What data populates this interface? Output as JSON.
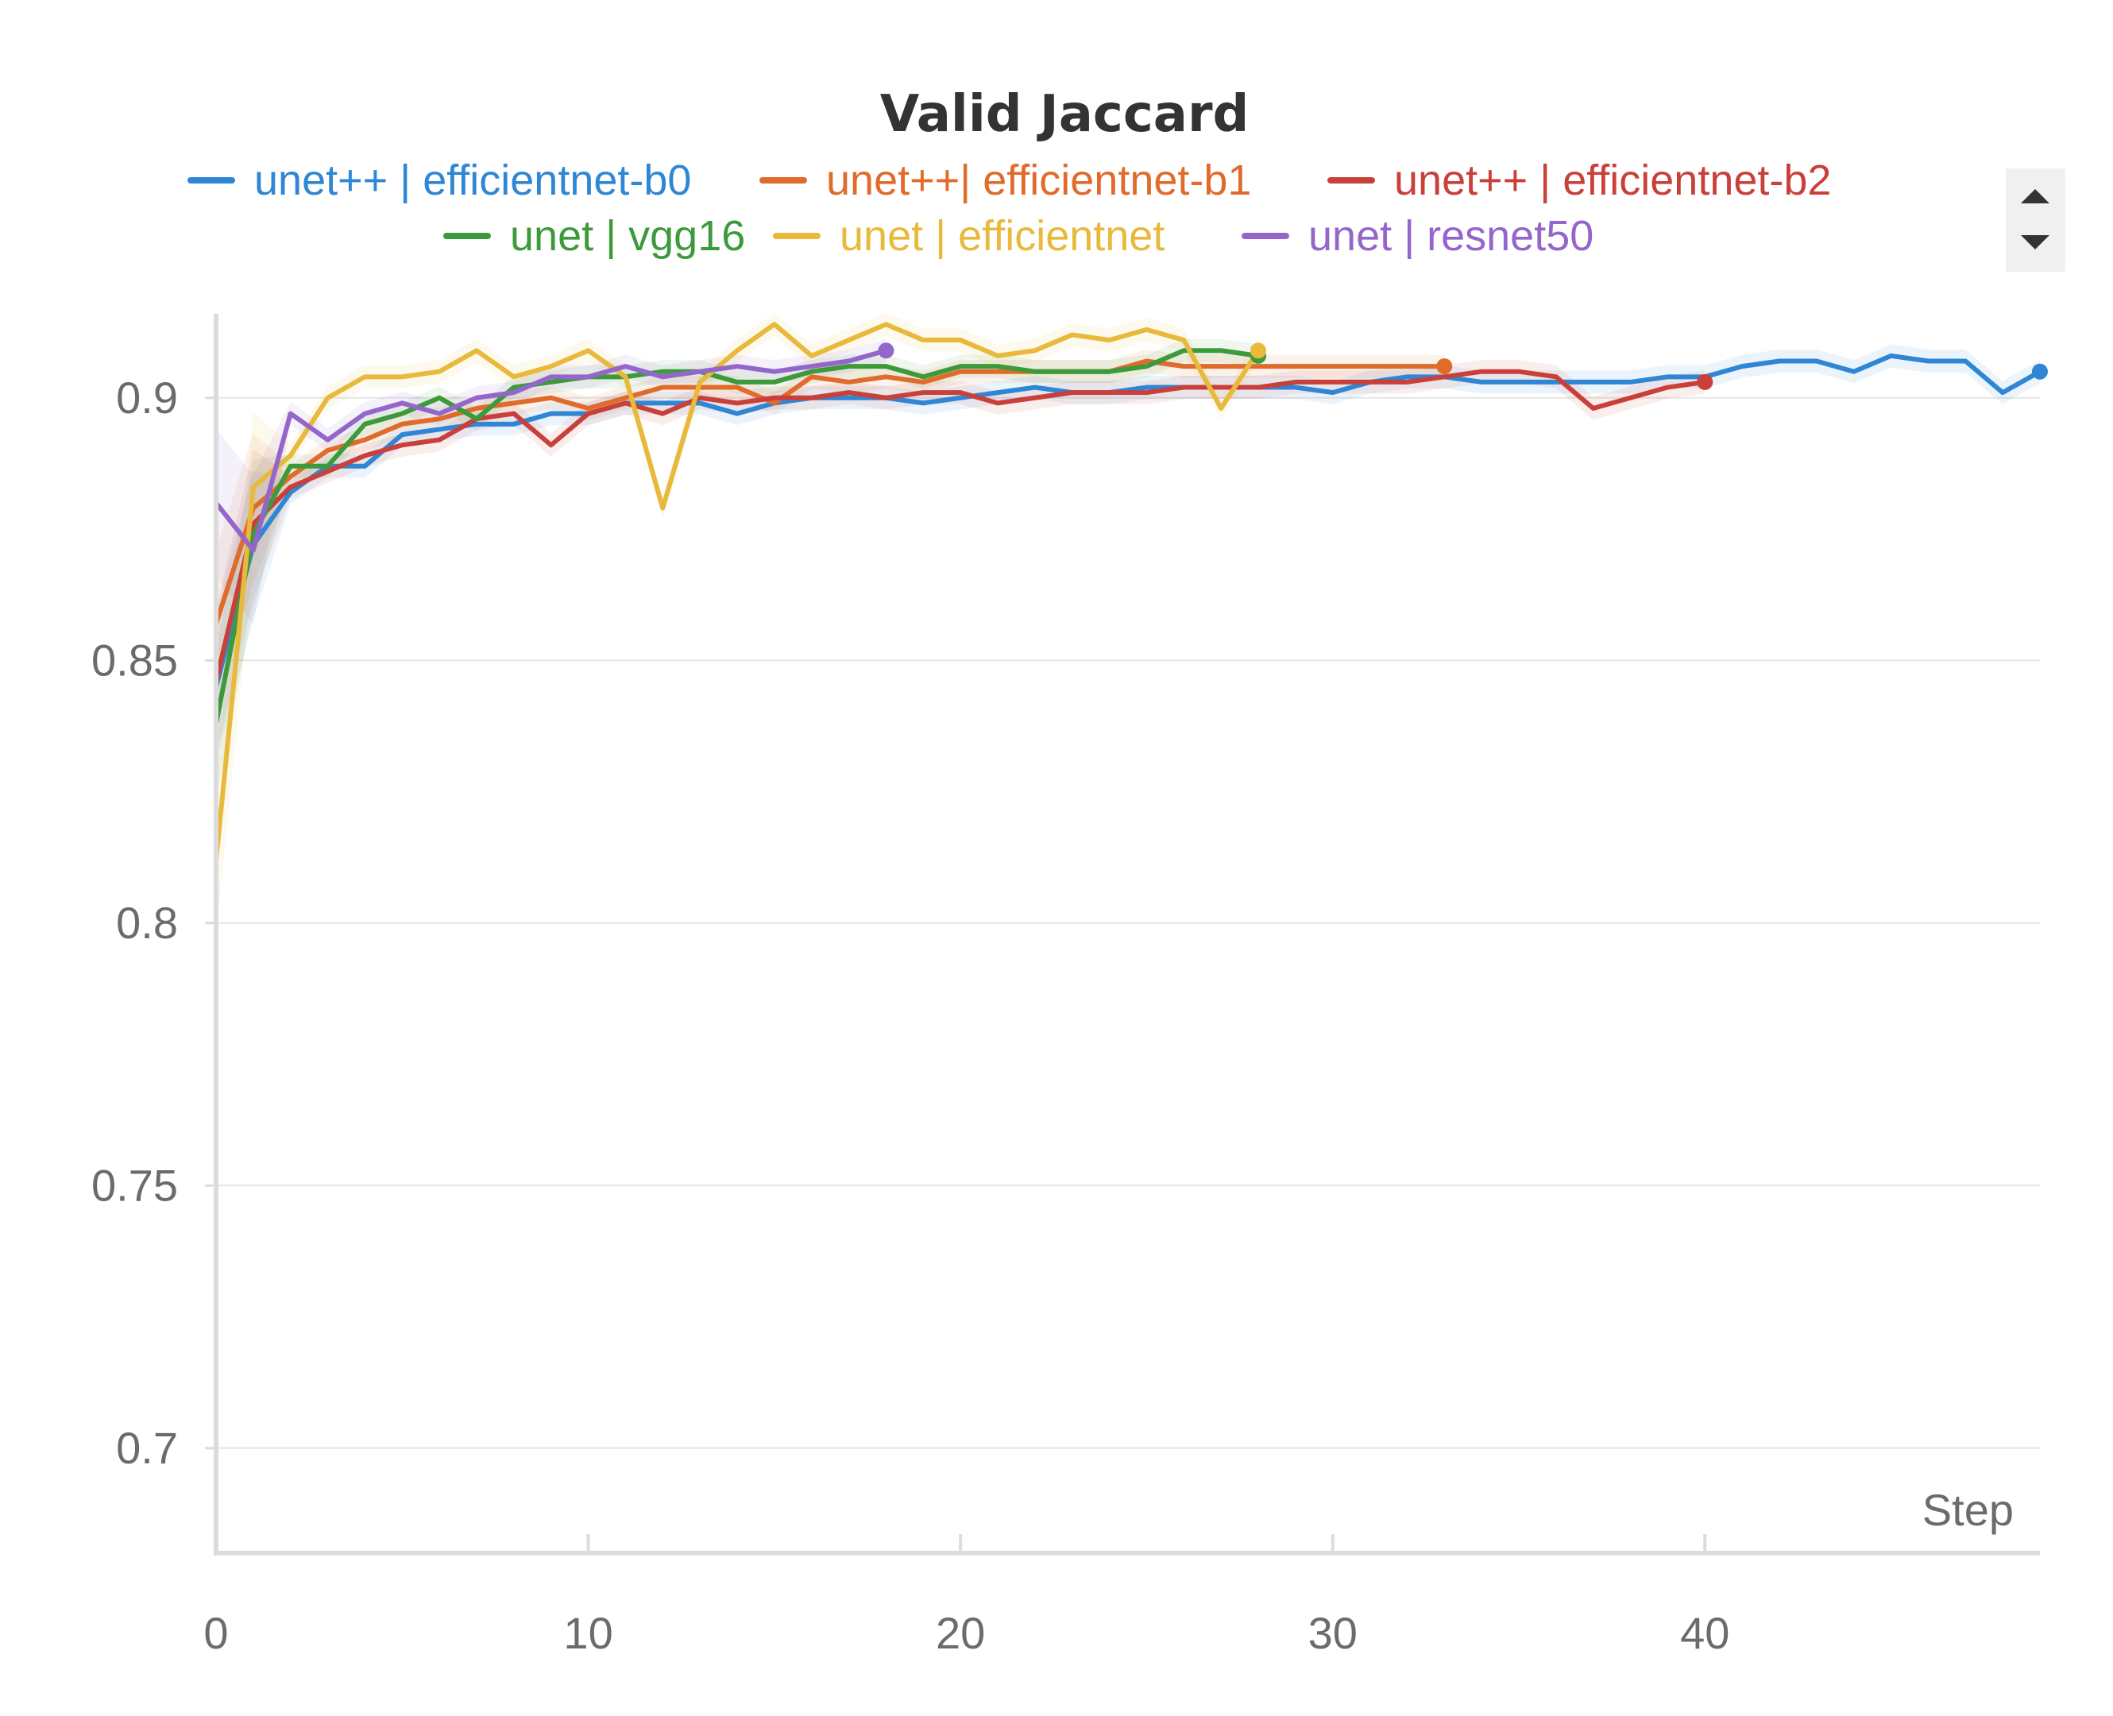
{
  "chart_data": {
    "type": "line",
    "title": "Valid Jaccard",
    "xlabel": "Step",
    "ylabel": "",
    "xlim": [
      0,
      49
    ],
    "ylim": [
      0.68,
      0.916
    ],
    "x_ticks": [
      0,
      10,
      20,
      30,
      40
    ],
    "y_ticks": [
      0.7,
      0.75,
      0.8,
      0.85,
      0.9
    ],
    "x_tick_labels": [
      "0",
      "10",
      "20",
      "30",
      "40"
    ],
    "y_tick_labels": [
      "0.7",
      "0.75",
      "0.8",
      "0.85",
      "0.9"
    ],
    "grid": true,
    "legend_position": "top",
    "series": [
      {
        "name": "unet++ | efficientnet-b0",
        "color": "#2f86d4",
        "values": [
          0.845,
          0.872,
          0.882,
          0.887,
          0.887,
          0.893,
          0.894,
          0.895,
          0.895,
          0.897,
          0.897,
          0.899,
          0.899,
          0.899,
          0.897,
          0.899,
          0.9,
          0.9,
          0.9,
          0.899,
          0.9,
          0.901,
          0.902,
          0.901,
          0.901,
          0.902,
          0.902,
          0.902,
          0.902,
          0.902,
          0.901,
          0.903,
          0.904,
          0.904,
          0.903,
          0.903,
          0.903,
          0.903,
          0.903,
          0.904,
          0.904,
          0.906,
          0.907,
          0.907,
          0.905,
          0.908,
          0.907,
          0.907,
          0.901,
          0.905
        ]
      },
      {
        "name": "unet++| efficientnet-b1",
        "color": "#e06b2a",
        "values": [
          0.857,
          0.879,
          0.885,
          0.89,
          0.892,
          0.895,
          0.896,
          0.898,
          0.899,
          0.9,
          0.898,
          0.9,
          0.902,
          0.902,
          0.902,
          0.899,
          0.904,
          0.903,
          0.904,
          0.903,
          0.905,
          0.905,
          0.905,
          0.905,
          0.905,
          0.907,
          0.906,
          0.906,
          0.906,
          0.906,
          0.906,
          0.906,
          0.906,
          0.906
        ]
      },
      {
        "name": "unet++ | efficientnet-b2",
        "color": "#c9403a",
        "values": [
          0.846,
          0.876,
          0.883,
          0.886,
          0.889,
          0.891,
          0.892,
          0.896,
          0.897,
          0.891,
          0.897,
          0.899,
          0.897,
          0.9,
          0.899,
          0.9,
          0.9,
          0.901,
          0.9,
          0.901,
          0.901,
          0.899,
          0.9,
          0.901,
          0.901,
          0.901,
          0.902,
          0.902,
          0.902,
          0.903,
          0.903,
          0.903,
          0.903,
          0.904,
          0.905,
          0.905,
          0.904,
          0.898,
          0.9,
          0.902,
          0.903
        ]
      },
      {
        "name": "unet | vgg16",
        "color": "#3d9a3a",
        "values": [
          0.838,
          0.874,
          0.887,
          0.887,
          0.895,
          0.897,
          0.9,
          0.896,
          0.902,
          0.903,
          0.904,
          0.904,
          0.905,
          0.905,
          0.903,
          0.903,
          0.905,
          0.906,
          0.906,
          0.904,
          0.906,
          0.906,
          0.905,
          0.905,
          0.905,
          0.906,
          0.909,
          0.909,
          0.908
        ]
      },
      {
        "name": "unet | efficientnet",
        "color": "#e8b93a",
        "values": [
          0.812,
          0.883,
          0.889,
          0.9,
          0.904,
          0.904,
          0.905,
          0.909,
          0.904,
          0.906,
          0.909,
          0.904,
          0.879,
          0.903,
          0.909,
          0.914,
          0.908,
          0.911,
          0.914,
          0.911,
          0.911,
          0.908,
          0.909,
          0.912,
          0.911,
          0.913,
          0.911,
          0.898,
          0.909
        ]
      },
      {
        "name": "unet | resnet50",
        "color": "#9466cc",
        "values": [
          0.88,
          0.871,
          0.897,
          0.892,
          0.897,
          0.899,
          0.897,
          0.9,
          0.901,
          0.904,
          0.904,
          0.906,
          0.904,
          0.905,
          0.906,
          0.905,
          0.906,
          0.907,
          0.909
        ]
      }
    ]
  },
  "legend": {
    "scroll_up_label": "scroll up",
    "scroll_down_label": "scroll down"
  }
}
